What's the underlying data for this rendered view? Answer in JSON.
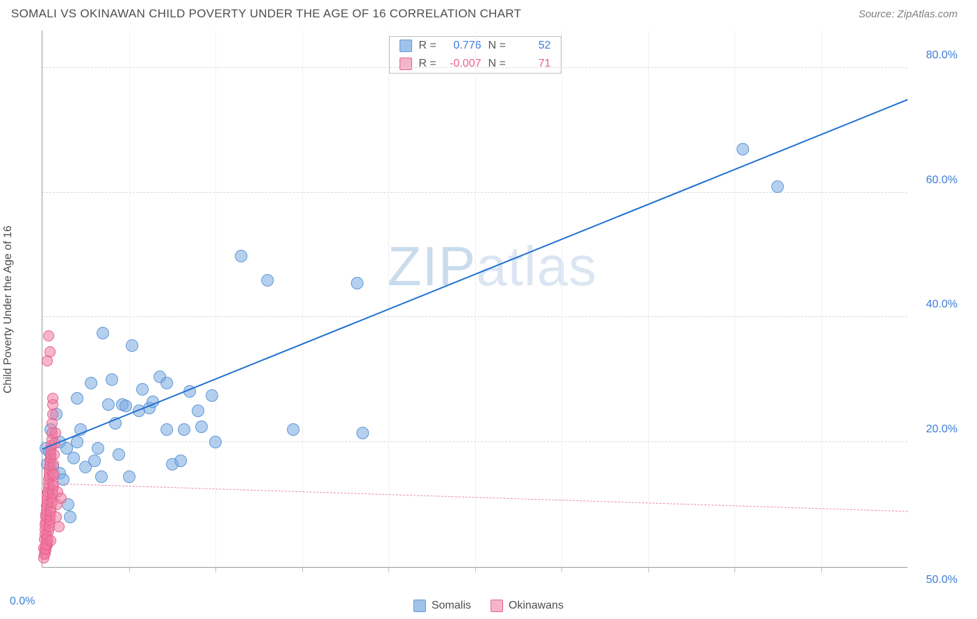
{
  "header": {
    "title": "SOMALI VS OKINAWAN CHILD POVERTY UNDER THE AGE OF 16 CORRELATION CHART",
    "source_label": "Source: ZipAtlas.com"
  },
  "chart": {
    "type": "scatter",
    "y_axis_title": "Child Poverty Under the Age of 16",
    "background_color": "#ffffff",
    "grid_color": "#d9d9d9",
    "axis_line_color": "#999999",
    "x_range": [
      0,
      50
    ],
    "y_range": [
      0,
      86
    ],
    "y_ticks": [
      {
        "value": 20,
        "label": "20.0%"
      },
      {
        "value": 40,
        "label": "40.0%"
      },
      {
        "value": 60,
        "label": "60.0%"
      },
      {
        "value": 80,
        "label": "80.0%"
      }
    ],
    "x_tick_step": 5,
    "x_origin_label": "0.0%",
    "x_end_label": "50.0%",
    "watermark": "ZIPatlas",
    "series": [
      {
        "name": "Somalis",
        "color_fill": "rgba(120,170,225,0.55)",
        "color_stroke": "#5f97d6",
        "marker_size": 18,
        "r": 0.776,
        "n": 52,
        "trend": {
          "x1": 0,
          "y1": 19,
          "x2": 50,
          "y2": 75,
          "color": "#1f6fd1",
          "dashed": false,
          "width": 2.5
        },
        "points": [
          [
            0.2,
            19
          ],
          [
            0.3,
            16.5
          ],
          [
            0.4,
            18.5
          ],
          [
            0.5,
            22
          ],
          [
            0.6,
            16
          ],
          [
            0.8,
            24.5
          ],
          [
            1.0,
            20
          ],
          [
            1.0,
            15
          ],
          [
            1.2,
            14
          ],
          [
            1.4,
            19
          ],
          [
            1.5,
            10
          ],
          [
            1.6,
            8
          ],
          [
            1.8,
            17.5
          ],
          [
            2.0,
            27
          ],
          [
            2.0,
            20
          ],
          [
            2.2,
            22
          ],
          [
            2.5,
            16
          ],
          [
            2.8,
            29.5
          ],
          [
            3,
            17
          ],
          [
            3.2,
            19
          ],
          [
            3.4,
            14.5
          ],
          [
            3.5,
            37.5
          ],
          [
            3.8,
            26
          ],
          [
            4.0,
            30
          ],
          [
            4.2,
            23
          ],
          [
            4.4,
            18
          ],
          [
            4.6,
            26
          ],
          [
            4.8,
            25.8
          ],
          [
            5.0,
            14.5
          ],
          [
            5.2,
            35.5
          ],
          [
            5.6,
            25
          ],
          [
            5.8,
            28.5
          ],
          [
            6.2,
            25.5
          ],
          [
            6.4,
            26.5
          ],
          [
            6.8,
            30.5
          ],
          [
            7.2,
            22
          ],
          [
            7.2,
            29.5
          ],
          [
            7.5,
            16.5
          ],
          [
            8.0,
            17
          ],
          [
            8.2,
            22
          ],
          [
            8.5,
            28.2
          ],
          [
            9.0,
            25
          ],
          [
            9.2,
            22.5
          ],
          [
            9.8,
            27.5
          ],
          [
            10.0,
            20
          ],
          [
            11.5,
            49.8
          ],
          [
            13.0,
            46
          ],
          [
            14.5,
            22
          ],
          [
            18.2,
            45.5
          ],
          [
            18.5,
            21.5
          ],
          [
            40.5,
            67
          ],
          [
            42.5,
            61
          ]
        ]
      },
      {
        "name": "Okinawans",
        "color_fill": "rgba(240,120,160,0.55)",
        "color_stroke": "#e6628d",
        "marker_size": 16,
        "r": -0.007,
        "n": 71,
        "trend": {
          "x1": 0,
          "y1": 13.5,
          "x2": 50,
          "y2": 9,
          "color": "#e98aab",
          "dashed": true,
          "width": 1.5
        },
        "points": [
          [
            0.1,
            3
          ],
          [
            0.12,
            4.5
          ],
          [
            0.15,
            5.2
          ],
          [
            0.15,
            6
          ],
          [
            0.18,
            6.8
          ],
          [
            0.2,
            7.2
          ],
          [
            0.2,
            8
          ],
          [
            0.22,
            8.5
          ],
          [
            0.25,
            9
          ],
          [
            0.25,
            9.8
          ],
          [
            0.28,
            10.2
          ],
          [
            0.3,
            10.8
          ],
          [
            0.3,
            11.5
          ],
          [
            0.32,
            12
          ],
          [
            0.35,
            12.6
          ],
          [
            0.35,
            13.2
          ],
          [
            0.38,
            14
          ],
          [
            0.4,
            14.5
          ],
          [
            0.4,
            15
          ],
          [
            0.42,
            15.8
          ],
          [
            0.45,
            16.2
          ],
          [
            0.45,
            17
          ],
          [
            0.48,
            17.5
          ],
          [
            0.5,
            18
          ],
          [
            0.5,
            18.8
          ],
          [
            0.52,
            19.5
          ],
          [
            0.55,
            20.5
          ],
          [
            0.55,
            21.5
          ],
          [
            0.58,
            23
          ],
          [
            0.6,
            24.5
          ],
          [
            0.6,
            26
          ],
          [
            0.6,
            27
          ],
          [
            0.3,
            3.6
          ],
          [
            0.32,
            4.2
          ],
          [
            0.38,
            5.8
          ],
          [
            0.4,
            7
          ],
          [
            0.45,
            8.2
          ],
          [
            0.5,
            9.5
          ],
          [
            0.55,
            11
          ],
          [
            0.58,
            12.4
          ],
          [
            0.6,
            13.5
          ],
          [
            0.62,
            15
          ],
          [
            0.65,
            16.5
          ],
          [
            0.7,
            18
          ],
          [
            0.72,
            19.8
          ],
          [
            0.75,
            21.5
          ],
          [
            0.15,
            2.2
          ],
          [
            0.2,
            2.8
          ],
          [
            0.25,
            3.4
          ],
          [
            0.3,
            5
          ],
          [
            0.4,
            6.4
          ],
          [
            0.45,
            7.6
          ],
          [
            0.5,
            8.9
          ],
          [
            0.55,
            10.3
          ],
          [
            0.6,
            11.8
          ],
          [
            0.65,
            13
          ],
          [
            0.7,
            14.8
          ],
          [
            0.3,
            33
          ],
          [
            0.45,
            34.5
          ],
          [
            0.35,
            37
          ],
          [
            0.8,
            8
          ],
          [
            0.85,
            10
          ],
          [
            0.9,
            12
          ],
          [
            0.95,
            6.5
          ],
          [
            1.1,
            11
          ],
          [
            0.1,
            1.5
          ],
          [
            0.12,
            2
          ],
          [
            0.15,
            2.8
          ],
          [
            0.2,
            3.6
          ],
          [
            0.25,
            4.5
          ],
          [
            0.5,
            4.2
          ]
        ]
      }
    ],
    "legend_top": {
      "rows": [
        {
          "swatch": "blue",
          "r_label": "R =",
          "r_value": "0.776",
          "n_label": "N =",
          "n_value": "52"
        },
        {
          "swatch": "pink",
          "r_label": "R =",
          "r_value": "-0.007",
          "n_label": "N =",
          "n_value": "71"
        }
      ]
    },
    "legend_bottom": {
      "items": [
        {
          "swatch": "blue",
          "label": "Somalis"
        },
        {
          "swatch": "pink",
          "label": "Okinawans"
        }
      ]
    }
  }
}
